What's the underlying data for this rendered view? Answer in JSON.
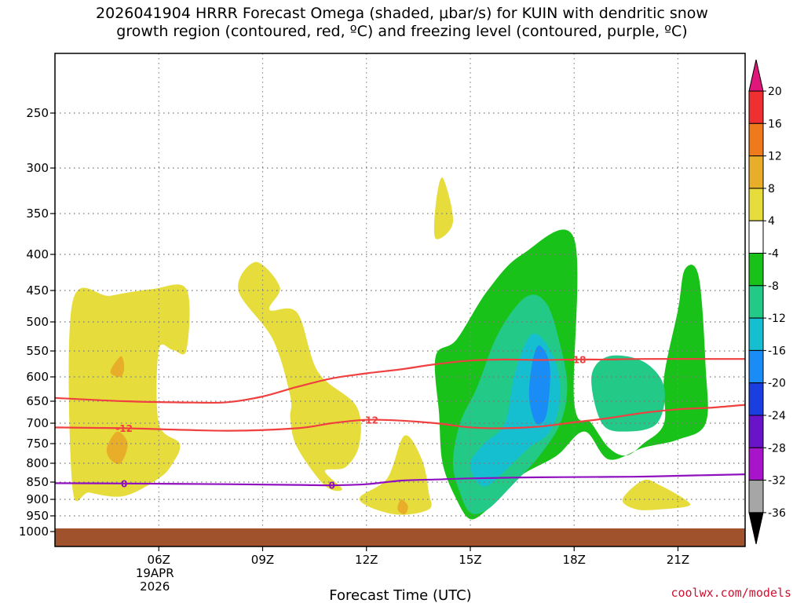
{
  "title_lines": [
    "2026041904 HRRR Forecast Omega (shaded, μbar/s) for KUIN with dendritic snow",
    "growth region (contoured, red, ºC) and freezing level (contoured, purple, ºC)"
  ],
  "credit": "coolwx.com/models",
  "chart_data": {
    "type": "heatmap",
    "xlabel": "Forecast Time (UTC)",
    "x_ticks": [
      "06Z",
      "09Z",
      "12Z",
      "15Z",
      "18Z",
      "21Z"
    ],
    "x_date_label": [
      "19APR",
      "2026"
    ],
    "x_hours": [
      6,
      9,
      12,
      15,
      18,
      21
    ],
    "xlim_hours": [
      3,
      22.94
    ],
    "y_ticks": [
      250,
      300,
      350,
      400,
      450,
      500,
      550,
      600,
      650,
      700,
      750,
      800,
      850,
      900,
      950,
      1000
    ],
    "y_unit": "hPa",
    "ylim": [
      200,
      1040
    ],
    "grid": "dotted",
    "colorbar": {
      "labels": [
        "20",
        "16",
        "12",
        "8",
        "4",
        "-4",
        "-8",
        "-12",
        "-16",
        "-20",
        "-24",
        "-28",
        "-32",
        "-36"
      ],
      "colors": [
        "#e0177a",
        "#f03030",
        "#ee7a1c",
        "#e8ae2a",
        "#e6dd3c",
        "#ffffff",
        "#19c219",
        "#22c987",
        "#16bfcf",
        "#1a8cf5",
        "#1a3ee0",
        "#6a14c9",
        "#a814c9",
        "#a6a6a6",
        "#000000"
      ]
    },
    "contours": [
      {
        "name": "dendritic_-12C",
        "color": "#f04040",
        "label": "-12",
        "points": [
          [
            3,
            710
          ],
          [
            5,
            712
          ],
          [
            8,
            718
          ],
          [
            10,
            712
          ],
          [
            11,
            700
          ],
          [
            12,
            692
          ],
          [
            13,
            694
          ],
          [
            14,
            700
          ],
          [
            15,
            710
          ],
          [
            16,
            712
          ],
          [
            17,
            708
          ],
          [
            18,
            698
          ],
          [
            19,
            688
          ],
          [
            20,
            676
          ],
          [
            21,
            668
          ],
          [
            22,
            664
          ],
          [
            22.94,
            658
          ]
        ]
      },
      {
        "name": "dendritic_-18C",
        "color": "#f04040",
        "label": "-18",
        "points": [
          [
            3,
            643
          ],
          [
            5,
            650
          ],
          [
            7,
            653
          ],
          [
            8,
            652
          ],
          [
            9,
            640
          ],
          [
            10,
            620
          ],
          [
            11,
            603
          ],
          [
            12,
            593
          ],
          [
            13,
            585
          ],
          [
            14,
            575
          ],
          [
            15,
            568
          ],
          [
            16,
            566
          ],
          [
            17,
            567
          ],
          [
            18,
            566
          ],
          [
            19,
            566
          ],
          [
            20,
            565
          ],
          [
            22.94,
            565
          ]
        ]
      },
      {
        "name": "freezing_0C",
        "color": "#9010c0",
        "label": "0",
        "points": [
          [
            3,
            853
          ],
          [
            5,
            854
          ],
          [
            8,
            856
          ],
          [
            10,
            858
          ],
          [
            11,
            859
          ],
          [
            12,
            856
          ],
          [
            13,
            846
          ],
          [
            14,
            843
          ],
          [
            15,
            840
          ],
          [
            17,
            837
          ],
          [
            19,
            836
          ],
          [
            20,
            835
          ],
          [
            21,
            833
          ],
          [
            22.94,
            829
          ]
        ]
      }
    ],
    "omega_regions": [
      {
        "level": "4..8",
        "color": "#e6dd3c",
        "points": [
          [
            3.5,
            860
          ],
          [
            3.5,
            470
          ],
          [
            4.6,
            458
          ],
          [
            5.8,
            448
          ],
          [
            6.8,
            448
          ],
          [
            6.8,
            548
          ],
          [
            6.4,
            548
          ],
          [
            6.0,
            548
          ],
          [
            6.0,
            700
          ],
          [
            6.6,
            750
          ],
          [
            6.4,
            800
          ],
          [
            6.0,
            840
          ],
          [
            5.0,
            890
          ],
          [
            4.0,
            880
          ]
        ]
      },
      {
        "name": "8..12",
        "color": "#e8ae2a",
        "points": [
          [
            4.6,
            590
          ],
          [
            4.9,
            560
          ],
          [
            5.0,
            580
          ],
          [
            4.9,
            600
          ]
        ]
      },
      {
        "level": "8..12",
        "color": "#e8ae2a",
        "points": [
          [
            4.5,
            760
          ],
          [
            4.8,
            720
          ],
          [
            5.1,
            750
          ],
          [
            4.9,
            800
          ],
          [
            4.6,
            790
          ]
        ]
      },
      {
        "level": "4..8",
        "color": "#e6dd3c",
        "points": [
          [
            8.3,
            450
          ],
          [
            8.8,
            410
          ],
          [
            9.5,
            445
          ],
          [
            9.2,
            480
          ],
          [
            10.0,
            485
          ],
          [
            10.6,
            590
          ],
          [
            11.7,
            660
          ],
          [
            11.8,
            750
          ],
          [
            11.4,
            810
          ],
          [
            10.8,
            820
          ],
          [
            11.3,
            870
          ],
          [
            10.8,
            860
          ],
          [
            10.0,
            760
          ],
          [
            9.8,
            690
          ],
          [
            9.8,
            640
          ],
          [
            9.3,
            530
          ]
        ]
      },
      {
        "level": "4..8",
        "color": "#e6dd3c",
        "points": [
          [
            12.6,
            840
          ],
          [
            13.1,
            730
          ],
          [
            13.6,
            790
          ],
          [
            13.8,
            880
          ],
          [
            13.8,
            930
          ],
          [
            12.8,
            945
          ],
          [
            11.8,
            900
          ]
        ]
      },
      {
        "level": "8..12",
        "color": "#e8ae2a",
        "points": [
          [
            12.9,
            930
          ],
          [
            13.0,
            900
          ],
          [
            13.2,
            920
          ],
          [
            13.1,
            945
          ]
        ]
      },
      {
        "level": "4..8",
        "color": "#e6dd3c",
        "points": [
          [
            14.0,
            340
          ],
          [
            14.2,
            310
          ],
          [
            14.5,
            360
          ],
          [
            14.0,
            380
          ]
        ]
      },
      {
        "level": "-4..-8",
        "color": "#19c219",
        "points": [
          [
            15.0,
            960
          ],
          [
            14.6,
            900
          ],
          [
            14.2,
            800
          ],
          [
            14.1,
            680
          ],
          [
            14.0,
            560
          ],
          [
            14.6,
            530
          ],
          [
            15.5,
            450
          ],
          [
            16.5,
            400
          ],
          [
            18.0,
            380
          ],
          [
            18.0,
            650
          ],
          [
            18.5,
            700
          ],
          [
            19.0,
            760
          ],
          [
            19.5,
            780
          ],
          [
            20.0,
            750
          ],
          [
            20.6,
            700
          ],
          [
            20.6,
            600
          ],
          [
            21.0,
            480
          ],
          [
            21.2,
            420
          ],
          [
            21.6,
            430
          ],
          [
            21.8,
            580
          ],
          [
            21.8,
            700
          ],
          [
            21.0,
            740
          ],
          [
            20.0,
            760
          ],
          [
            19.0,
            790
          ],
          [
            18.3,
            720
          ],
          [
            17.5,
            780
          ],
          [
            16.5,
            830
          ],
          [
            16.0,
            880
          ],
          [
            15.5,
            930
          ]
        ]
      },
      {
        "level": "-8..-12",
        "color": "#22c987",
        "points": [
          [
            15.0,
            940
          ],
          [
            14.7,
            880
          ],
          [
            14.5,
            800
          ],
          [
            14.7,
            700
          ],
          [
            15.2,
            620
          ],
          [
            15.8,
            520
          ],
          [
            16.6,
            460
          ],
          [
            17.2,
            470
          ],
          [
            17.6,
            540
          ],
          [
            17.8,
            620
          ],
          [
            17.6,
            700
          ],
          [
            17.0,
            780
          ],
          [
            16.2,
            860
          ],
          [
            15.5,
            930
          ]
        ]
      },
      {
        "level": "-8..-12",
        "color": "#22c987",
        "points": [
          [
            18.5,
            600
          ],
          [
            19.0,
            560
          ],
          [
            20.0,
            570
          ],
          [
            20.6,
            620
          ],
          [
            20.4,
            700
          ],
          [
            19.5,
            720
          ],
          [
            18.8,
            700
          ]
        ]
      },
      {
        "level": "-12..-16",
        "color": "#16bfcf",
        "points": [
          [
            15.2,
            850
          ],
          [
            15.0,
            800
          ],
          [
            15.4,
            750
          ],
          [
            16.0,
            700
          ],
          [
            16.3,
            590
          ],
          [
            16.8,
            520
          ],
          [
            17.4,
            560
          ],
          [
            17.6,
            640
          ],
          [
            17.3,
            720
          ],
          [
            16.7,
            760
          ],
          [
            16.0,
            820
          ],
          [
            15.5,
            860
          ]
        ]
      },
      {
        "level": "-16..-20",
        "color": "#1a8cf5",
        "points": [
          [
            16.7,
            640
          ],
          [
            16.8,
            570
          ],
          [
            17.0,
            540
          ],
          [
            17.3,
            580
          ],
          [
            17.2,
            680
          ],
          [
            16.9,
            700
          ]
        ]
      },
      {
        "level": "4..8",
        "color": "#e6dd3c",
        "points": [
          [
            19.4,
            900
          ],
          [
            20.0,
            845
          ],
          [
            20.5,
            860
          ],
          [
            21.2,
            900
          ],
          [
            21.3,
            920
          ],
          [
            20.5,
            930
          ],
          [
            19.8,
            930
          ]
        ]
      }
    ],
    "ground_color": "#a0522d"
  }
}
